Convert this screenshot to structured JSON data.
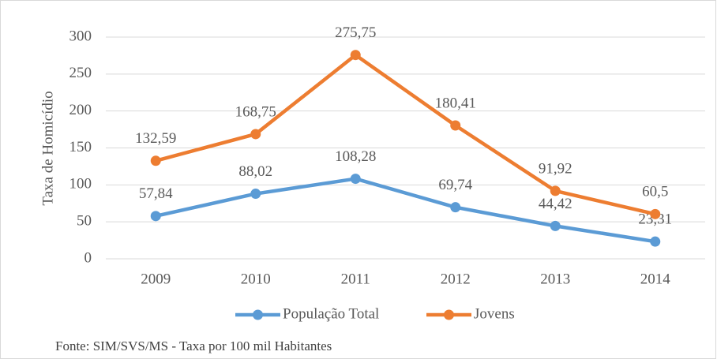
{
  "chart_data": {
    "type": "line",
    "y_label": "Taxa de Homicídio",
    "categories": [
      "2009",
      "2010",
      "2011",
      "2012",
      "2013",
      "2014"
    ],
    "series": [
      {
        "name": "População Total",
        "color": "#5b9bd5",
        "values": [
          57.84,
          88.02,
          108.28,
          69.74,
          44.42,
          23.31
        ],
        "value_labels": [
          "57,84",
          "88,02",
          "108,28",
          "69,74",
          "44,42",
          "23,31"
        ]
      },
      {
        "name": "Jovens",
        "color": "#ed7d31",
        "values": [
          132.59,
          168.75,
          275.75,
          180.41,
          91.92,
          60.5
        ],
        "value_labels": [
          "132,59",
          "168,75",
          "275,75",
          "180,41",
          "91,92",
          "60,5"
        ]
      }
    ],
    "ylim": [
      0,
      300
    ],
    "yticks": [
      0,
      50,
      100,
      150,
      200,
      250,
      300
    ],
    "grid": true,
    "legend": "bottom",
    "source": "Fonte: SIM/SVS/MS - Taxa por 100 mil Habitantes"
  }
}
